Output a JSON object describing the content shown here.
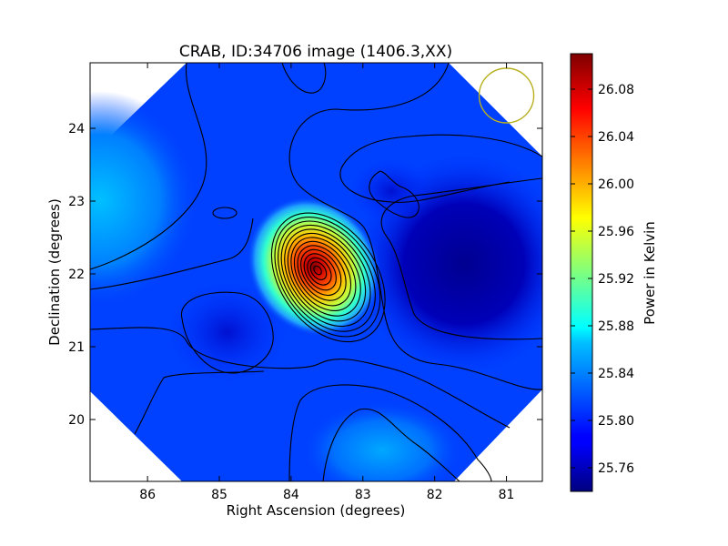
{
  "chart_data": {
    "type": "heatmap",
    "title": "CRAB, ID:34706 image (1406.3,XX)",
    "xlabel": "Right Ascension (degrees)",
    "ylabel": "Declination (degrees)",
    "xlim": [
      86.8,
      80.5
    ],
    "ylim": [
      19.15,
      24.9
    ],
    "x_ticks": [
      "86",
      "85",
      "84",
      "83",
      "82",
      "81"
    ],
    "y_ticks": [
      "20",
      "21",
      "22",
      "23",
      "24"
    ],
    "colorbar": {
      "label": "Power in Kelvin",
      "range": [
        25.74,
        26.11
      ],
      "ticks": [
        "25.76",
        "25.80",
        "25.84",
        "25.88",
        "25.92",
        "25.96",
        "26.00",
        "26.04",
        "26.08"
      ],
      "colormap": "jet"
    },
    "peak": {
      "ra": 83.63,
      "dec": 22.05,
      "value": 26.1
    },
    "features": [
      {
        "kind": "maximum",
        "ra": 86.6,
        "dec": 23.2,
        "value": 25.86
      },
      {
        "kind": "maximum",
        "ra": 83.2,
        "dec": 19.7,
        "value": 25.84
      },
      {
        "kind": "minimum",
        "ra": 81.2,
        "dec": 22.4,
        "value": 25.745
      },
      {
        "kind": "minimum",
        "ra": 84.8,
        "dec": 21.2,
        "value": 25.775
      },
      {
        "kind": "minimum",
        "ra": 82.8,
        "dec": 23.3,
        "value": 25.765
      }
    ],
    "beam_marker": {
      "ra": 81.0,
      "dec": 24.45,
      "color": "#b8b020"
    }
  }
}
